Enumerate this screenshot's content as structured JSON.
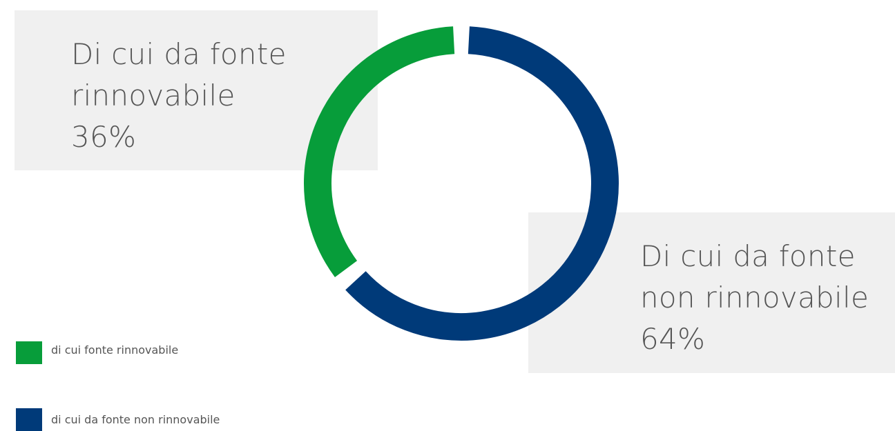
{
  "chart_data": {
    "type": "pie",
    "series": [
      {
        "name": "di cui fonte rinnovabile",
        "value": 36,
        "color": "#079d3a"
      },
      {
        "name": "di cui da fonte non rinnovabile",
        "value": 64,
        "color": "#003a79"
      }
    ],
    "annotations": [
      {
        "lines": [
          "Di cui da fonte",
          "rinnovabile",
          "36%"
        ]
      },
      {
        "lines": [
          "Di cui da fonte",
          "non rinnovabile",
          "64%"
        ]
      }
    ],
    "legend_placement": "bottom-left"
  }
}
